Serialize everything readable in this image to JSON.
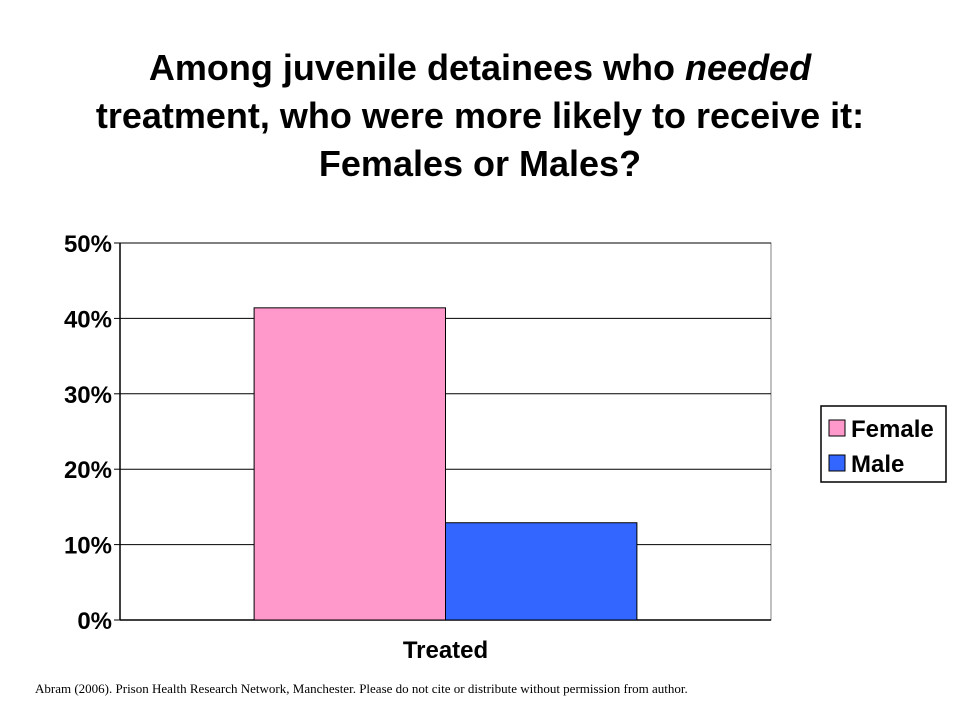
{
  "slide": {
    "title_part1": "Among juvenile detainees who ",
    "title_emphasis": "needed",
    "title_part2": "treatment, who were more likely to receive it: Females or Males?",
    "source": "Abram (2006). Prison Health Research Network, Manchester.  Please do not cite or distribute without permission  from author."
  },
  "chart_data": {
    "type": "bar",
    "categories": [
      "Treated"
    ],
    "series": [
      {
        "name": "Female",
        "values": [
          41.4
        ],
        "color": "#ff99cc"
      },
      {
        "name": "Male",
        "values": [
          12.9
        ],
        "color": "#3366ff"
      }
    ],
    "ylim": [
      0,
      50
    ],
    "yticks": [
      0,
      10,
      20,
      30,
      40,
      50
    ],
    "ytick_labels": [
      "0%",
      "10%",
      "20%",
      "30%",
      "40%",
      "50%"
    ],
    "grid": true,
    "legend": "right"
  }
}
